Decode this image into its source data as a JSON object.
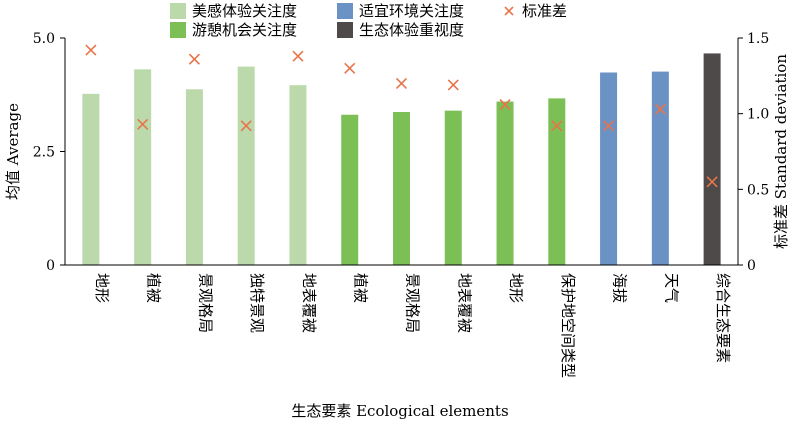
{
  "chart_data": {
    "type": "bar",
    "xlabel": "生态要素 Ecological elements",
    "ylabel_left": "均值 Average",
    "ylabel_right": "标准差 Standard deviation",
    "ylim_left": [
      0,
      5
    ],
    "ylim_right": [
      0,
      1.5
    ],
    "yticks_left": [
      "0",
      "2.5",
      "5.0"
    ],
    "yticks_right": [
      "0",
      "0.5",
      "1.0",
      "1.5"
    ],
    "grid": false,
    "legend_position": "top",
    "categories": [
      "地形",
      "植被",
      "景观格局",
      "独特景观",
      "地表覆被",
      "植被",
      "景观格局",
      "地表覆被",
      "地形",
      "保护地空间类型",
      "海拔",
      "天气",
      "综合生态要素"
    ],
    "groups": [
      "美感体验关注度",
      "美感体验关注度",
      "美感体验关注度",
      "美感体验关注度",
      "美感体验关注度",
      "游憩机会关注度",
      "游憩机会关注度",
      "游憩机会关注度",
      "游憩机会关注度",
      "游憩机会关注度",
      "适宜环境关注度",
      "适宜环境关注度",
      "生态体验重视度"
    ],
    "average": [
      3.77,
      4.31,
      3.87,
      4.37,
      3.96,
      3.31,
      3.37,
      3.4,
      3.6,
      3.67,
      4.24,
      4.26,
      4.66
    ],
    "std_dev": [
      1.42,
      0.93,
      1.36,
      0.92,
      1.38,
      1.3,
      1.2,
      1.19,
      1.06,
      0.92,
      0.92,
      1.03,
      0.55
    ],
    "series": [
      {
        "name": "美感体验关注度",
        "color": "#bcd9ac"
      },
      {
        "name": "游憩机会关注度",
        "color": "#7cbf55"
      },
      {
        "name": "适宜环境关注度",
        "color": "#6b92c4"
      },
      {
        "name": "生态体验重视度",
        "color": "#4e4a4a"
      },
      {
        "name": "标准差",
        "color": "#e8744a",
        "marker": "x"
      }
    ]
  }
}
